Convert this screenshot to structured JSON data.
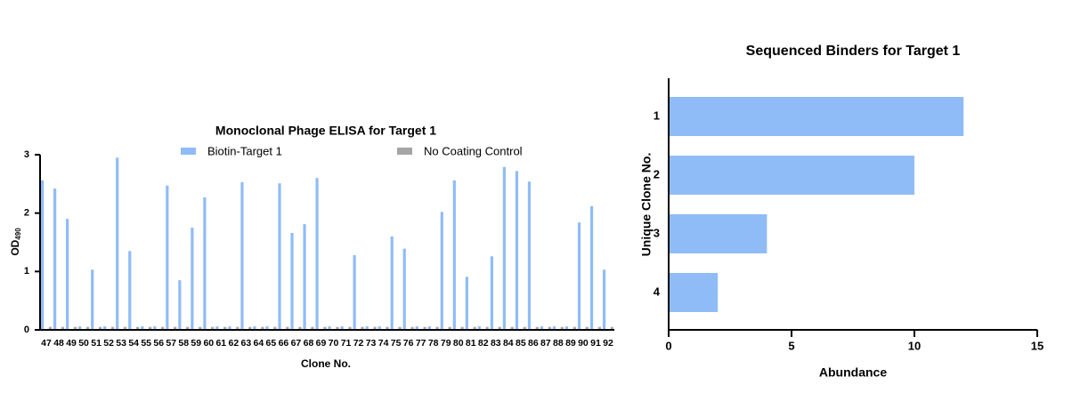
{
  "chart_data": [
    {
      "type": "grouped-bar",
      "title": "Monoclonal Phage ELISA for Target 1",
      "x_label": "Clone No.",
      "y_label": "OD",
      "y_label_subscript": "490",
      "categories": [
        "47",
        "48",
        "49",
        "50",
        "51",
        "52",
        "53",
        "54",
        "55",
        "56",
        "57",
        "58",
        "59",
        "60",
        "61",
        "62",
        "63",
        "64",
        "65",
        "66",
        "67",
        "68",
        "69",
        "70",
        "71",
        "72",
        "73",
        "74",
        "75",
        "76",
        "77",
        "78",
        "79",
        "80",
        "81",
        "82",
        "83",
        "84",
        "85",
        "86",
        "87",
        "88",
        "89",
        "90",
        "91",
        "92"
      ],
      "series": [
        {
          "name": "Biotin-Target 1",
          "color": "#8fbcf7",
          "values": [
            2.56,
            2.42,
            1.9,
            0.06,
            1.03,
            0.06,
            2.95,
            1.35,
            0.06,
            0.06,
            2.47,
            0.85,
            1.75,
            2.27,
            0.06,
            0.06,
            2.53,
            0.06,
            0.06,
            2.51,
            1.66,
            1.81,
            2.6,
            0.06,
            0.06,
            1.28,
            0.06,
            0.06,
            1.6,
            1.39,
            0.06,
            0.06,
            2.02,
            2.56,
            0.91,
            0.06,
            1.26,
            2.79,
            2.72,
            2.54,
            0.06,
            0.06,
            0.06,
            1.84,
            2.12,
            1.03
          ]
        },
        {
          "name": "No Coating Control",
          "color": "#a6a6a6",
          "values": [
            0.05,
            0.05,
            0.05,
            0.05,
            0.05,
            0.05,
            0.05,
            0.05,
            0.05,
            0.05,
            0.05,
            0.05,
            0.05,
            0.05,
            0.05,
            0.05,
            0.05,
            0.05,
            0.05,
            0.05,
            0.05,
            0.05,
            0.05,
            0.05,
            0.05,
            0.05,
            0.05,
            0.05,
            0.05,
            0.05,
            0.05,
            0.05,
            0.05,
            0.05,
            0.05,
            0.05,
            0.05,
            0.05,
            0.05,
            0.05,
            0.05,
            0.05,
            0.05,
            0.05,
            0.05,
            0.05
          ]
        }
      ],
      "ylim": [
        0,
        3
      ],
      "yticks": [
        0,
        1,
        2,
        3
      ],
      "grid": false
    },
    {
      "type": "hbar",
      "title": "Sequenced Binders for Target 1",
      "x_label": "Abundance",
      "y_label": "Unique Clone No.",
      "categories": [
        "1",
        "2",
        "3",
        "4"
      ],
      "values": [
        12,
        10,
        4,
        2
      ],
      "color": "#8fbcf7",
      "xlim": [
        0,
        15
      ],
      "xticks": [
        0,
        5,
        10,
        15
      ],
      "grid": false
    }
  ]
}
